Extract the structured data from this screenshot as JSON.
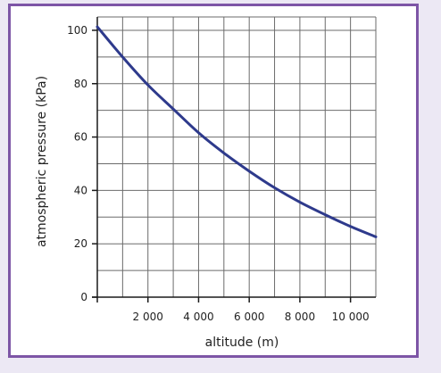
{
  "colors": {
    "frame_border": "#7d55a6",
    "background": "#ece8f4",
    "curve": "#2e3a8c",
    "grid": "#6b6b6b",
    "axis": "#1a1a1a"
  },
  "chart_data": {
    "type": "line",
    "title": "",
    "xlabel": "altitude (m)",
    "ylabel": "atmospheric pressure (kPa)",
    "xlim": [
      0,
      11000
    ],
    "ylim": [
      0,
      105
    ],
    "x_ticks": [
      2000,
      4000,
      6000,
      8000,
      10000
    ],
    "x_tick_labels": [
      "2 000",
      "4 000",
      "6 000",
      "8 000",
      "10 000"
    ],
    "y_ticks": [
      0,
      20,
      40,
      60,
      80,
      100
    ],
    "y_tick_labels": [
      "0",
      "20",
      "40",
      "60",
      "80",
      "100"
    ],
    "x_grid_step": 1000,
    "y_grid_step": 10,
    "grid": true,
    "legend": "none",
    "series": [
      {
        "x": [
          0,
          1000,
          2000,
          3000,
          4000,
          5000,
          6000,
          7000,
          8000,
          9000,
          10000,
          11000
        ],
        "values": [
          101.3,
          90.0,
          79.5,
          70.5,
          61.6,
          54.0,
          47.2,
          41.0,
          35.6,
          30.9,
          26.5,
          22.6
        ]
      }
    ]
  }
}
